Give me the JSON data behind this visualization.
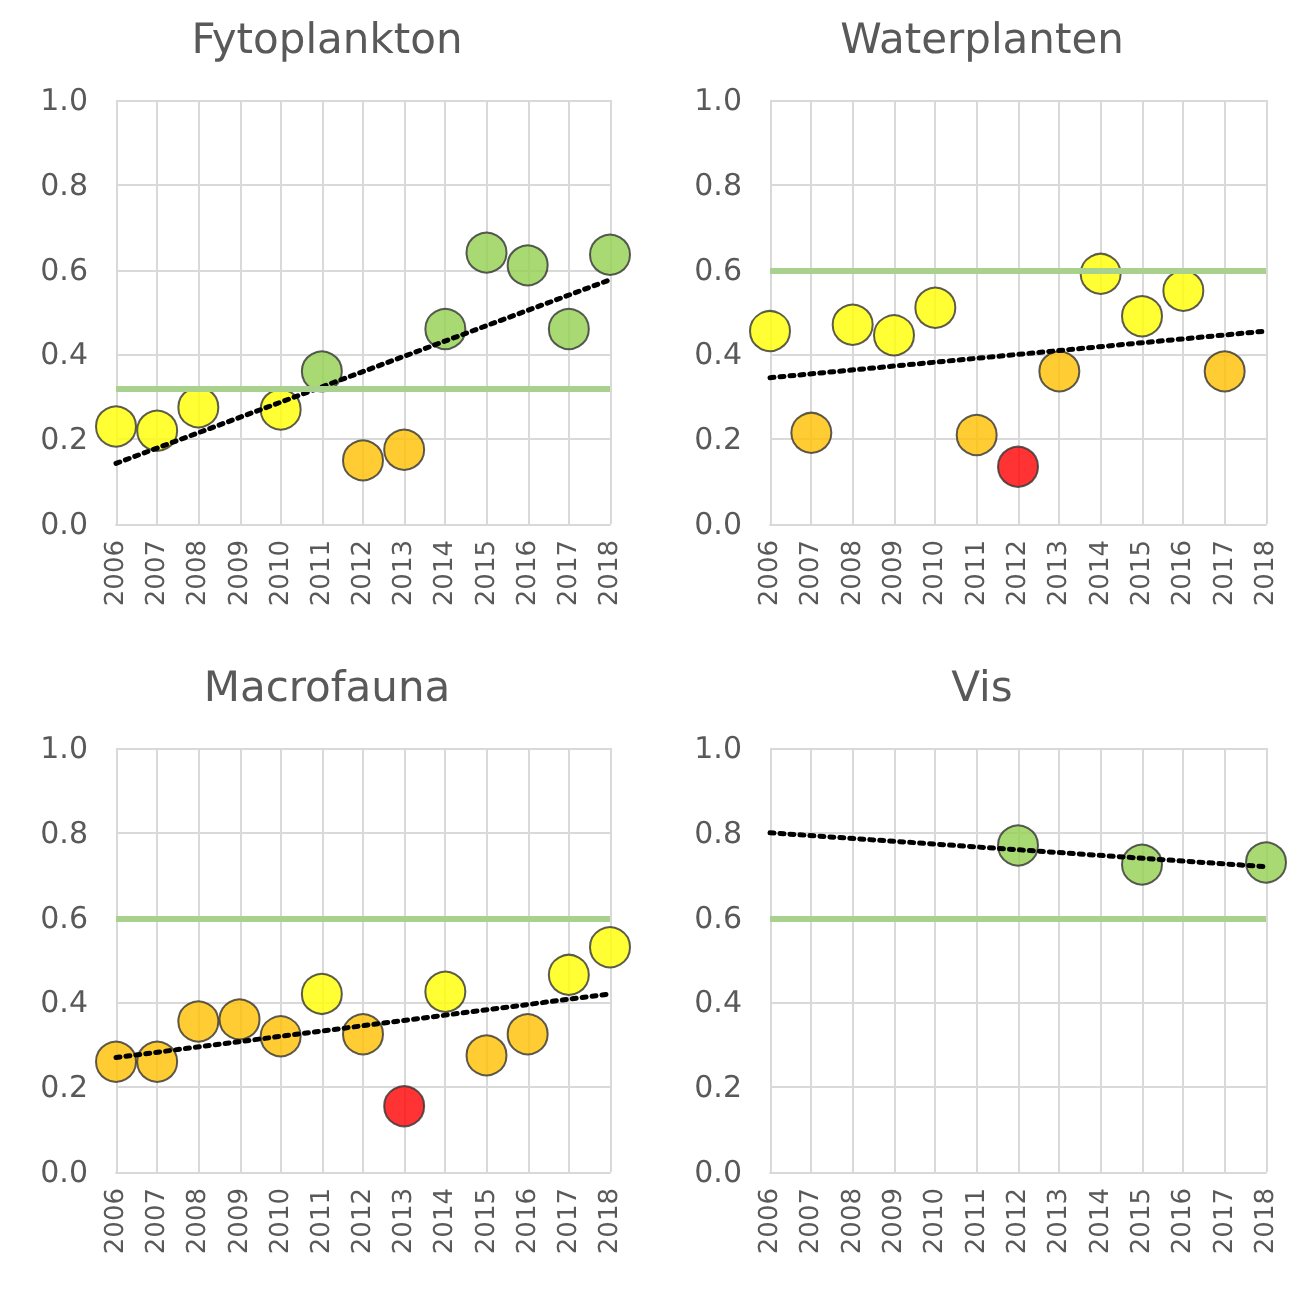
{
  "chart_data": [
    {
      "type": "scatter",
      "title": "Fytoplankton",
      "xlim": [
        2006,
        2018
      ],
      "xticks": [
        2006,
        2007,
        2008,
        2009,
        2010,
        2011,
        2012,
        2013,
        2014,
        2015,
        2016,
        2017,
        2018
      ],
      "ylim": [
        0,
        1
      ],
      "yticks": [
        {
          "value": 0,
          "label": "0.0"
        },
        {
          "value": 0.2,
          "label": "0.2"
        },
        {
          "value": 0.4,
          "label": "0.4"
        },
        {
          "value": 0.6,
          "label": "0.6"
        },
        {
          "value": 0.8,
          "label": "0.8"
        },
        {
          "value": 1,
          "label": "1.0"
        }
      ],
      "grid": true,
      "ref_lines": [
        {
          "axis": "y",
          "value": 0.315,
          "color": "#a9d18e"
        }
      ],
      "series": [
        {
          "marker": "circle",
          "x": [
            2006,
            2007,
            2008,
            2010,
            2011,
            2012,
            2013,
            2014,
            2015,
            2016,
            2017,
            2018
          ],
          "values": [
            0.23,
            0.22,
            0.275,
            0.27,
            0.36,
            0.15,
            0.175,
            0.46,
            0.64,
            0.61,
            0.46,
            0.635
          ],
          "colors": [
            "#ffff00",
            "#ffff00",
            "#ffff00",
            "#ffff00",
            "#92d050",
            "#ffc000",
            "#ffc000",
            "#92d050",
            "#92d050",
            "#92d050",
            "#92d050",
            "#92d050"
          ]
        },
        {
          "type": "line",
          "marker": "none",
          "x": [
            2006,
            2018
          ],
          "values": [
            0.143,
            0.576
          ],
          "color": "#000000",
          "line_style": "dotted"
        }
      ]
    },
    {
      "type": "scatter",
      "title": "Waterplanten",
      "xlim": [
        2006,
        2018
      ],
      "xticks": [
        2006,
        2007,
        2008,
        2009,
        2010,
        2011,
        2012,
        2013,
        2014,
        2015,
        2016,
        2017,
        2018
      ],
      "ylim": [
        0,
        1
      ],
      "yticks": [
        {
          "value": 0,
          "label": "0.0"
        },
        {
          "value": 0.2,
          "label": "0.2"
        },
        {
          "value": 0.4,
          "label": "0.4"
        },
        {
          "value": 0.6,
          "label": "0.6"
        },
        {
          "value": 0.8,
          "label": "0.8"
        },
        {
          "value": 1,
          "label": "1.0"
        }
      ],
      "grid": true,
      "ref_lines": [
        {
          "axis": "y",
          "value": 0.6,
          "color": "#a9d18e"
        }
      ],
      "series": [
        {
          "marker": "circle",
          "x": [
            2006,
            2007,
            2008,
            2009,
            2010,
            2011,
            2012,
            2013,
            2014,
            2015,
            2016,
            2017
          ],
          "values": [
            0.455,
            0.215,
            0.47,
            0.445,
            0.51,
            0.21,
            0.135,
            0.36,
            0.59,
            0.49,
            0.55,
            0.36
          ],
          "colors": [
            "#ffff00",
            "#ffc000",
            "#ffff00",
            "#ffff00",
            "#ffff00",
            "#ffc000",
            "#ff0000",
            "#ffc000",
            "#ffff00",
            "#ffff00",
            "#ffff00",
            "#ffc000"
          ]
        },
        {
          "type": "line",
          "marker": "none",
          "x": [
            2006,
            2018
          ],
          "values": [
            0.345,
            0.455
          ],
          "color": "#000000",
          "line_style": "dotted"
        }
      ]
    },
    {
      "type": "scatter",
      "title": "Macrofauna",
      "xlim": [
        2006,
        2018
      ],
      "xticks": [
        2006,
        2007,
        2008,
        2009,
        2010,
        2011,
        2012,
        2013,
        2014,
        2015,
        2016,
        2017,
        2018
      ],
      "ylim": [
        0,
        1
      ],
      "yticks": [
        {
          "value": 0,
          "label": "0.0"
        },
        {
          "value": 0.2,
          "label": "0.2"
        },
        {
          "value": 0.4,
          "label": "0.4"
        },
        {
          "value": 0.6,
          "label": "0.6"
        },
        {
          "value": 0.8,
          "label": "0.8"
        },
        {
          "value": 1,
          "label": "1.0"
        }
      ],
      "grid": true,
      "ref_lines": [
        {
          "axis": "y",
          "value": 0.6,
          "color": "#a9d18e"
        }
      ],
      "series": [
        {
          "marker": "circle",
          "x": [
            2006,
            2007,
            2008,
            2009,
            2010,
            2011,
            2012,
            2013,
            2014,
            2015,
            2016,
            2017,
            2018
          ],
          "values": [
            0.26,
            0.26,
            0.355,
            0.36,
            0.32,
            0.42,
            0.325,
            0.155,
            0.425,
            0.275,
            0.325,
            0.465,
            0.53
          ],
          "colors": [
            "#ffc000",
            "#ffc000",
            "#ffc000",
            "#ffc000",
            "#ffc000",
            "#ffff00",
            "#ffc000",
            "#ff0000",
            "#ffff00",
            "#ffc000",
            "#ffc000",
            "#ffff00",
            "#ffff00"
          ]
        },
        {
          "type": "line",
          "marker": "none",
          "x": [
            2006,
            2018
          ],
          "values": [
            0.27,
            0.42
          ],
          "color": "#000000",
          "line_style": "dotted"
        }
      ]
    },
    {
      "type": "scatter",
      "title": "Vis",
      "xlim": [
        2006,
        2018
      ],
      "xticks": [
        2006,
        2007,
        2008,
        2009,
        2010,
        2011,
        2012,
        2013,
        2014,
        2015,
        2016,
        2017,
        2018
      ],
      "ylim": [
        0,
        1
      ],
      "yticks": [
        {
          "value": 0,
          "label": "0.0"
        },
        {
          "value": 0.2,
          "label": "0.2"
        },
        {
          "value": 0.4,
          "label": "0.4"
        },
        {
          "value": 0.6,
          "label": "0.6"
        },
        {
          "value": 0.8,
          "label": "0.8"
        },
        {
          "value": 1,
          "label": "1.0"
        }
      ],
      "grid": true,
      "ref_lines": [
        {
          "axis": "y",
          "value": 0.6,
          "color": "#a9d18e"
        }
      ],
      "series": [
        {
          "marker": "circle",
          "x": [
            2012,
            2015,
            2018
          ],
          "values": [
            0.77,
            0.725,
            0.73
          ],
          "colors": [
            "#92d050",
            "#92d050",
            "#92d050"
          ]
        },
        {
          "type": "line",
          "marker": "none",
          "x": [
            2006,
            2018
          ],
          "values": [
            0.8,
            0.72
          ],
          "color": "#000000",
          "line_style": "dotted"
        }
      ]
    }
  ]
}
